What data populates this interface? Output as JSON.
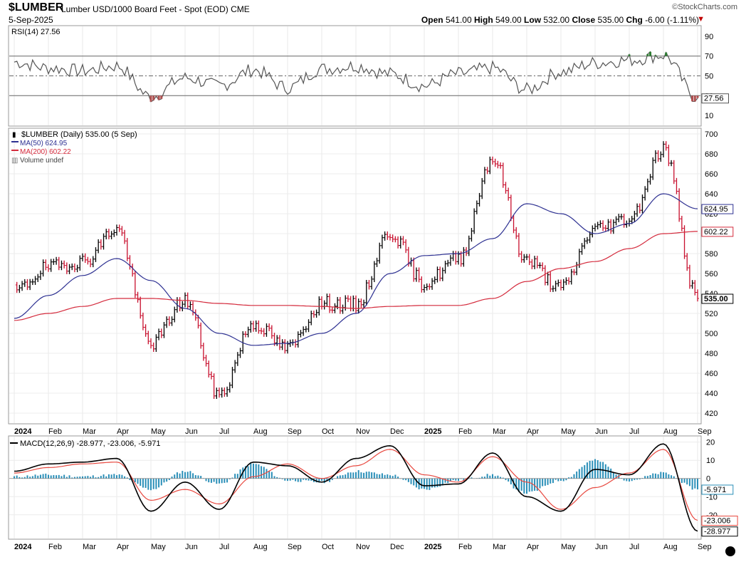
{
  "header": {
    "symbol": "$LUMBER",
    "description": "Lumber USD/1000 Board Feet - Spot (EOD)",
    "exchange": "CME",
    "date": "5-Sep-2025",
    "brand": "©StockCharts.com",
    "open_label": "Open",
    "open": "541.00",
    "high_label": "High",
    "high": "549.00",
    "low_label": "Low",
    "low": "532.00",
    "close_label": "Close",
    "close": "535.00",
    "chg_label": "Chg",
    "chg": "-6.00 (-1.11%)",
    "chg_arrow": "▼"
  },
  "colors": {
    "rsi": "#555555",
    "price_bar": "#000000",
    "price_bar_down": "#c8102e",
    "ma50": "#2e3192",
    "ma200": "#d42a3c",
    "macd": "#000000",
    "signal": "#e8483f",
    "histogram": "#2a8fb8",
    "rsi_over": "#2e7d32",
    "rsi_under": "#b05050"
  },
  "chart_data": [
    {
      "type": "line",
      "panel": "rsi",
      "legend": "RSI(14) 27.56",
      "last_value_label": "27.56",
      "ylim": [
        0,
        100
      ],
      "yticks": [
        "90",
        "70",
        "50",
        "30",
        "10"
      ],
      "reference_lines": [
        70,
        50,
        30
      ],
      "x": [
        "2024-01",
        "2024-02",
        "2024-03",
        "2024-04",
        "2024-05",
        "2024-06",
        "2024-07",
        "2024-08",
        "2024-09",
        "2024-10",
        "2024-11",
        "2024-12",
        "2025-01",
        "2025-02",
        "2025-03",
        "2025-04",
        "2025-05",
        "2025-06",
        "2025-07",
        "2025-08",
        "2025-09"
      ],
      "series": [
        {
          "values": [
            64,
            58,
            55,
            60,
            29,
            48,
            40,
            56,
            38,
            57,
            60,
            52,
            40,
            52,
            58,
            36,
            54,
            63,
            66,
            71,
            27.56
          ]
        }
      ]
    },
    {
      "type": "line",
      "panel": "price",
      "legend": [
        "$LUMBER (Daily) 535.00 (5 Sep)",
        "MA(50) 624.95",
        "MA(200) 602.22",
        "Volume undef"
      ],
      "last_value_labels": [
        "624.95",
        "602.22",
        "535.00"
      ],
      "ylim": [
        410,
        705
      ],
      "yticks": [
        "700",
        "680",
        "660",
        "640",
        "620",
        "600",
        "580",
        "560",
        "540",
        "520",
        "500",
        "480",
        "460",
        "440",
        "420"
      ],
      "x": [
        "2024-01",
        "2024-02",
        "2024-03",
        "2024-04",
        "2024-05",
        "2024-06",
        "2024-07",
        "2024-08",
        "2024-09",
        "2024-10",
        "2024-11",
        "2024-12",
        "2025-01",
        "2025-02",
        "2025-03",
        "2025-04",
        "2025-05",
        "2025-06",
        "2025-07",
        "2025-08",
        "2025-09"
      ],
      "series": [
        {
          "name": "$LUMBER (Daily)",
          "values": [
            542,
            566,
            572,
            605,
            490,
            533,
            438,
            510,
            485,
            530,
            528,
            601,
            550,
            575,
            675,
            573,
            545,
            605,
            615,
            685,
            535
          ]
        },
        {
          "name": "MA(50)",
          "values": [
            515,
            538,
            558,
            575,
            553,
            525,
            500,
            488,
            490,
            500,
            520,
            560,
            578,
            580,
            595,
            630,
            620,
            600,
            610,
            640,
            624.95
          ]
        },
        {
          "name": "MA(200)",
          "values": [
            513,
            520,
            527,
            535,
            535,
            533,
            530,
            528,
            528,
            527,
            525,
            527,
            528,
            528,
            535,
            552,
            565,
            572,
            585,
            600,
            602.22
          ]
        }
      ]
    },
    {
      "type": "line",
      "panel": "macd",
      "legend": "MACD(12,26,9) -28.977, -23.006, -5.971",
      "last_value_labels": [
        "-5.971",
        "-23.006",
        "-28.977"
      ],
      "ylim": [
        -33,
        23
      ],
      "yticks": [
        "20",
        "10",
        "0",
        "-10",
        "-20"
      ],
      "x": [
        "2024-01",
        "2024-02",
        "2024-03",
        "2024-04",
        "2024-05",
        "2024-06",
        "2024-07",
        "2024-08",
        "2024-09",
        "2024-10",
        "2024-11",
        "2024-12",
        "2025-01",
        "2025-02",
        "2025-03",
        "2025-04",
        "2025-05",
        "2025-06",
        "2025-07",
        "2025-08",
        "2025-09"
      ],
      "series": [
        {
          "name": "MACD",
          "values": [
            4,
            8,
            9,
            11,
            -18,
            -2,
            -17,
            9,
            7,
            -2,
            11,
            18,
            -4,
            -3,
            14,
            -10,
            -18,
            5,
            2,
            19,
            -28.977
          ]
        },
        {
          "name": "Signal",
          "values": [
            3,
            6,
            8,
            9,
            -12,
            -6,
            -14,
            1,
            8,
            0,
            7,
            16,
            2,
            -2,
            12,
            -2,
            -17,
            -5,
            3,
            16,
            -23.006
          ]
        },
        {
          "name": "Histogram",
          "values": [
            1,
            2,
            1,
            2,
            -6,
            4,
            -3,
            8,
            -1,
            -2,
            4,
            2,
            -6,
            -1,
            2,
            -8,
            -1,
            10,
            -1,
            3,
            -5.971
          ]
        }
      ]
    }
  ],
  "x_axis": {
    "months": [
      "2024",
      "Feb",
      "Mar",
      "Apr",
      "May",
      "Jun",
      "Jul",
      "Aug",
      "Sep",
      "Oct",
      "Nov",
      "Dec",
      "2025",
      "Feb",
      "Mar",
      "Apr",
      "May",
      "Jun",
      "Jul",
      "Aug",
      "Sep"
    ]
  }
}
